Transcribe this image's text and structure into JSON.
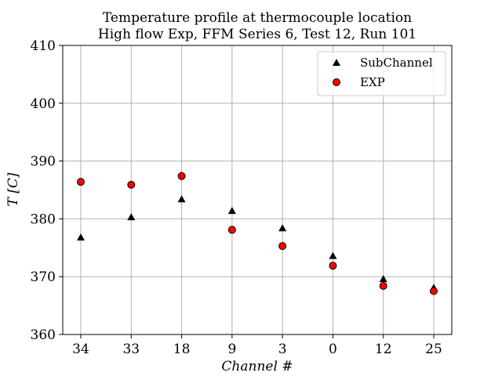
{
  "chart_data": {
    "type": "scatter",
    "title_line1": "Temperature profile at thermocouple location",
    "title_line2": "High flow Exp, FFM Series 6, Test 12, Run 101",
    "xlabel": "Channel #",
    "ylabel": "T [C]",
    "categories": [
      "34",
      "33",
      "18",
      "9",
      "3",
      "0",
      "12",
      "25"
    ],
    "ylim": [
      360,
      410
    ],
    "yticks": [
      "360",
      "370",
      "380",
      "390",
      "400",
      "410"
    ],
    "grid": true,
    "legend_position": "top-right",
    "series": [
      {
        "name": "SubChannel",
        "marker": "triangle",
        "color": "#000000",
        "values": [
          376.8,
          380.3,
          383.4,
          381.4,
          378.4,
          373.6,
          369.6,
          368.1
        ]
      },
      {
        "name": "EXP",
        "marker": "circle",
        "color": "#ff0000",
        "edge_color": "#000000",
        "values": [
          386.4,
          385.9,
          387.4,
          378.1,
          375.3,
          371.9,
          368.4,
          367.5
        ]
      }
    ]
  }
}
